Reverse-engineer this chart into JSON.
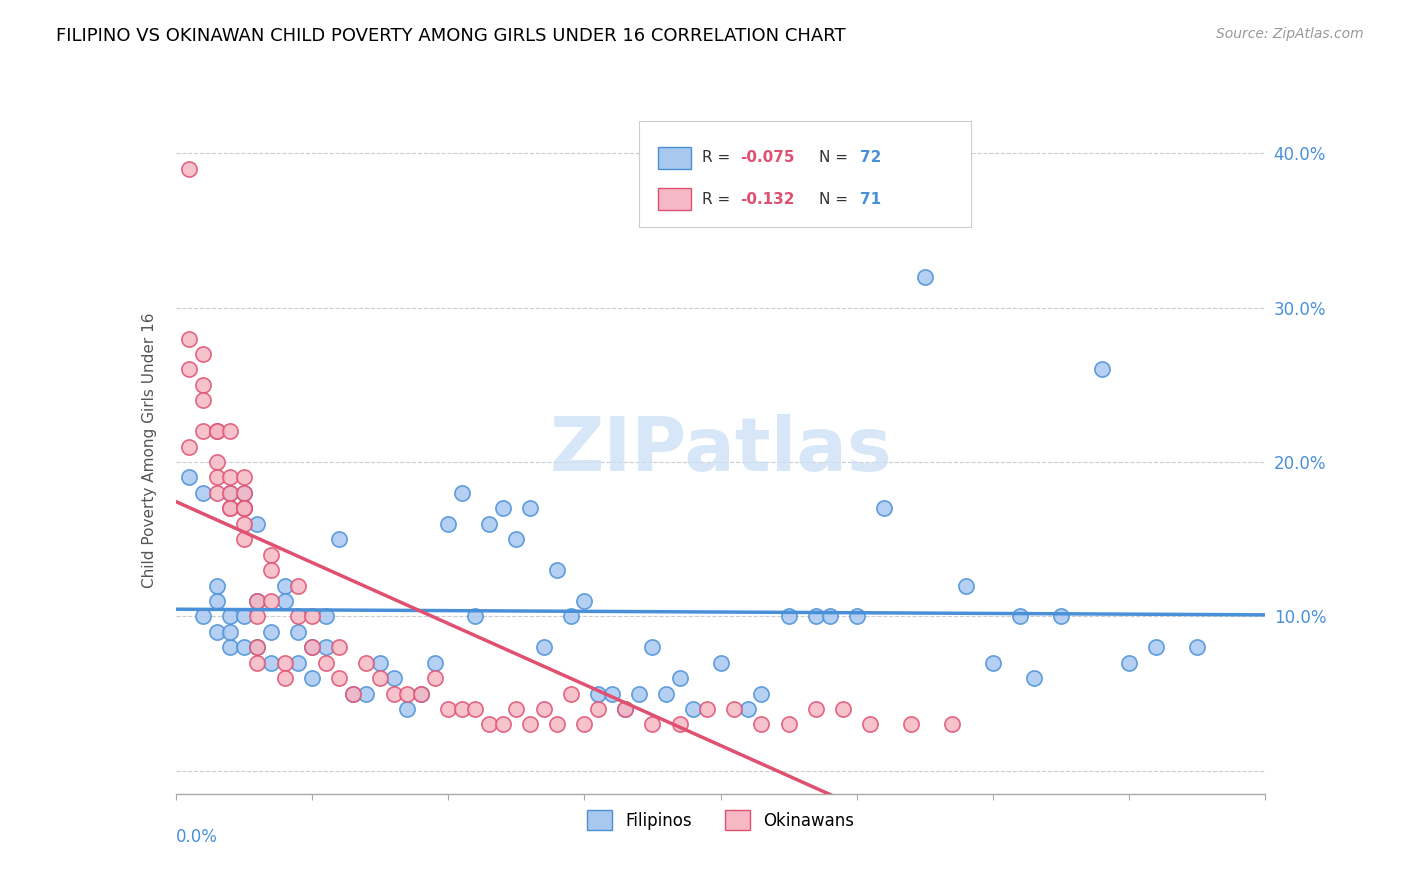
{
  "title": "FILIPINO VS OKINAWAN CHILD POVERTY AMONG GIRLS UNDER 16 CORRELATION CHART",
  "source": "Source: ZipAtlas.com",
  "ylabel": "Child Poverty Among Girls Under 16",
  "yticks": [
    0.0,
    0.1,
    0.2,
    0.3,
    0.4
  ],
  "ytick_labels": [
    "",
    "10.0%",
    "20.0%",
    "30.0%",
    "40.0%"
  ],
  "xlim": [
    0.0,
    0.08
  ],
  "ylim": [
    -0.015,
    0.43
  ],
  "watermark": "ZIPatlas",
  "filipino_color": "#a8c8f0",
  "okinawan_color": "#f5b8c4",
  "trendline_filipino_color": "#4a90d9",
  "trendline_okinawan_color": "#e05070",
  "trendline_dashed_color": "#b8b8b8",
  "filipinos_x": [
    0.001,
    0.002,
    0.002,
    0.003,
    0.003,
    0.003,
    0.004,
    0.004,
    0.004,
    0.004,
    0.005,
    0.005,
    0.005,
    0.005,
    0.006,
    0.006,
    0.006,
    0.007,
    0.007,
    0.008,
    0.008,
    0.009,
    0.009,
    0.01,
    0.01,
    0.011,
    0.011,
    0.012,
    0.013,
    0.014,
    0.015,
    0.016,
    0.017,
    0.018,
    0.019,
    0.02,
    0.021,
    0.022,
    0.023,
    0.024,
    0.025,
    0.026,
    0.027,
    0.028,
    0.029,
    0.03,
    0.031,
    0.032,
    0.033,
    0.034,
    0.035,
    0.036,
    0.037,
    0.038,
    0.04,
    0.042,
    0.043,
    0.045,
    0.047,
    0.048,
    0.05,
    0.052,
    0.055,
    0.058,
    0.06,
    0.062,
    0.063,
    0.065,
    0.068,
    0.07,
    0.072,
    0.075
  ],
  "filipinos_y": [
    0.19,
    0.18,
    0.1,
    0.11,
    0.09,
    0.12,
    0.1,
    0.08,
    0.09,
    0.18,
    0.18,
    0.17,
    0.08,
    0.1,
    0.16,
    0.11,
    0.08,
    0.09,
    0.07,
    0.12,
    0.11,
    0.09,
    0.07,
    0.08,
    0.06,
    0.1,
    0.08,
    0.15,
    0.05,
    0.05,
    0.07,
    0.06,
    0.04,
    0.05,
    0.07,
    0.16,
    0.18,
    0.1,
    0.16,
    0.17,
    0.15,
    0.17,
    0.08,
    0.13,
    0.1,
    0.11,
    0.05,
    0.05,
    0.04,
    0.05,
    0.08,
    0.05,
    0.06,
    0.04,
    0.07,
    0.04,
    0.05,
    0.1,
    0.1,
    0.1,
    0.1,
    0.17,
    0.32,
    0.12,
    0.07,
    0.1,
    0.06,
    0.1,
    0.26,
    0.07,
    0.08,
    0.08
  ],
  "okinawans_x": [
    0.001,
    0.001,
    0.001,
    0.001,
    0.002,
    0.002,
    0.002,
    0.002,
    0.003,
    0.003,
    0.003,
    0.003,
    0.003,
    0.004,
    0.004,
    0.004,
    0.004,
    0.004,
    0.005,
    0.005,
    0.005,
    0.005,
    0.005,
    0.005,
    0.006,
    0.006,
    0.006,
    0.006,
    0.007,
    0.007,
    0.007,
    0.008,
    0.008,
    0.009,
    0.009,
    0.01,
    0.01,
    0.011,
    0.012,
    0.012,
    0.013,
    0.014,
    0.015,
    0.016,
    0.017,
    0.018,
    0.019,
    0.02,
    0.021,
    0.022,
    0.023,
    0.024,
    0.025,
    0.026,
    0.027,
    0.028,
    0.029,
    0.03,
    0.031,
    0.033,
    0.035,
    0.037,
    0.039,
    0.041,
    0.043,
    0.045,
    0.047,
    0.049,
    0.051,
    0.054,
    0.057
  ],
  "okinawans_y": [
    0.39,
    0.28,
    0.26,
    0.21,
    0.27,
    0.25,
    0.24,
    0.22,
    0.22,
    0.2,
    0.22,
    0.19,
    0.18,
    0.19,
    0.18,
    0.17,
    0.17,
    0.22,
    0.18,
    0.17,
    0.16,
    0.17,
    0.15,
    0.19,
    0.11,
    0.1,
    0.08,
    0.07,
    0.14,
    0.13,
    0.11,
    0.07,
    0.06,
    0.12,
    0.1,
    0.1,
    0.08,
    0.07,
    0.08,
    0.06,
    0.05,
    0.07,
    0.06,
    0.05,
    0.05,
    0.05,
    0.06,
    0.04,
    0.04,
    0.04,
    0.03,
    0.03,
    0.04,
    0.03,
    0.04,
    0.03,
    0.05,
    0.03,
    0.04,
    0.04,
    0.03,
    0.03,
    0.04,
    0.04,
    0.03,
    0.03,
    0.04,
    0.04,
    0.03,
    0.03,
    0.03
  ]
}
